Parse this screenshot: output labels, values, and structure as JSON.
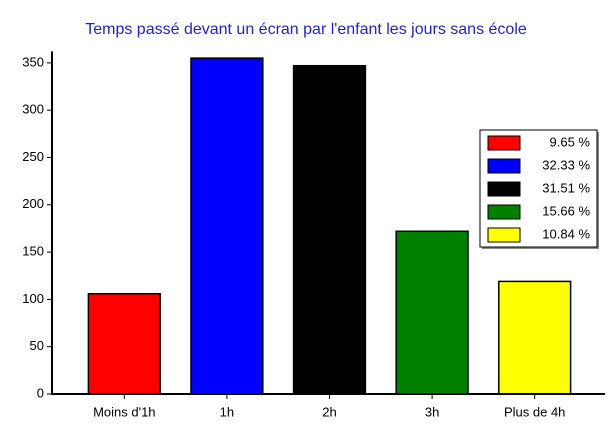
{
  "chart_data": {
    "type": "bar",
    "title": "Temps passé devant un écran par l'enfant les jours sans école",
    "categories": [
      "Moins d'1h",
      "1h",
      "2h",
      "3h",
      "Plus de 4h"
    ],
    "values": [
      106,
      355,
      347,
      172,
      119
    ],
    "colors": [
      "#ff0000",
      "#0000ff",
      "#000000",
      "#008000",
      "#ffff00"
    ],
    "legend": [
      "9.65 %",
      "32.33 %",
      "31.51 %",
      "15.66 %",
      "10.84 %"
    ],
    "ylim": [
      0,
      360
    ],
    "yticks": [
      0,
      50,
      100,
      150,
      200,
      250,
      300,
      350
    ],
    "grid": false
  }
}
